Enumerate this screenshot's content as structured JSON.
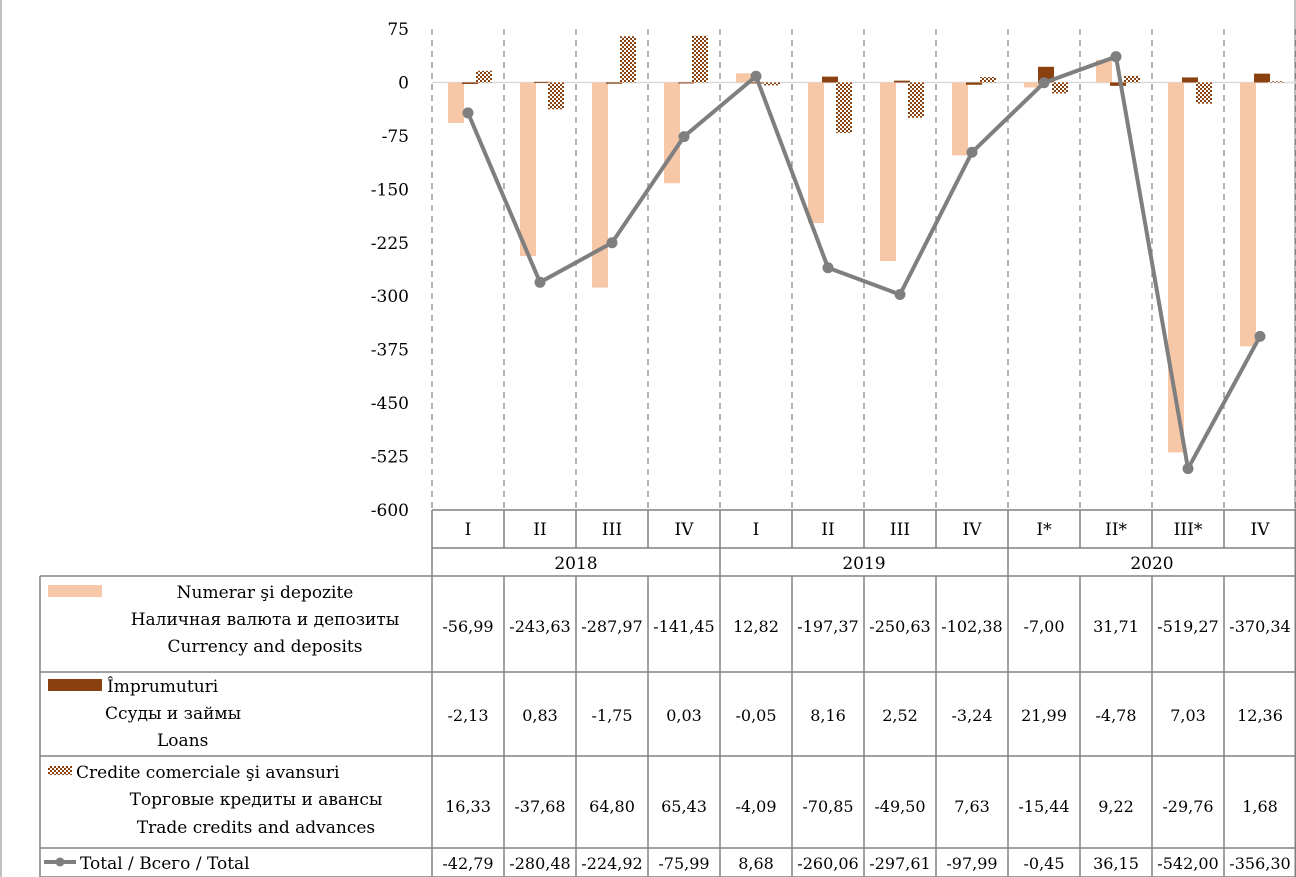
{
  "chart_data": {
    "type": "bar",
    "quarters": [
      "I",
      "II",
      "III",
      "IV",
      "I",
      "II",
      "III",
      "IV",
      "I*",
      "II*",
      "III*",
      "IV"
    ],
    "years": [
      {
        "label": "2018",
        "span": 4
      },
      {
        "label": "2019",
        "span": 4
      },
      {
        "label": "2020",
        "span": 4
      }
    ],
    "y_ticks": [
      "75",
      "0",
      "-75",
      "-150",
      "-225",
      "-300",
      "-375",
      "-450",
      "-525",
      "-600"
    ],
    "ylim": [
      -600,
      75
    ],
    "series": [
      {
        "key": "currency",
        "type": "bar",
        "color": "#f7c8a8",
        "pattern": "solid",
        "label_lines": [
          "Numerar şi depozite",
          "Наличная валюта и депозиты",
          "Currency and deposits"
        ],
        "values": [
          -56.99,
          -243.63,
          -287.97,
          -141.45,
          12.82,
          -197.37,
          -250.63,
          -102.38,
          -7.0,
          31.71,
          -519.27,
          -370.34
        ],
        "cells": [
          "-56,99",
          "-243,63",
          "-287,97",
          "-141,45",
          "12,82",
          "-197,37",
          "-250,63",
          "-102,38",
          "-7,00",
          "31,71",
          "-519,27",
          "-370,34"
        ]
      },
      {
        "key": "loans",
        "type": "bar",
        "color": "#8b4010",
        "pattern": "solid",
        "label_lines": [
          "Împrumuturi",
          "Ссуды и займы",
          "Loans"
        ],
        "values": [
          -2.13,
          0.83,
          -1.75,
          0.03,
          -0.05,
          8.16,
          2.52,
          -3.24,
          21.99,
          -4.78,
          7.03,
          12.36
        ],
        "cells": [
          "-2,13",
          "0,83",
          "-1,75",
          "0,03",
          "-0,05",
          "8,16",
          "2,52",
          "-3,24",
          "21,99",
          "-4,78",
          "7,03",
          "12,36"
        ]
      },
      {
        "key": "trade",
        "type": "bar",
        "color": "#8b4010",
        "pattern": "checker",
        "label_lines": [
          "Credite comerciale şi avansuri",
          "Торговые кредиты и авансы",
          "Trade credits and advances"
        ],
        "values": [
          16.33,
          -37.68,
          64.8,
          65.43,
          -4.09,
          -70.85,
          -49.5,
          7.63,
          -15.44,
          9.22,
          -29.76,
          1.68
        ],
        "cells": [
          "16,33",
          "-37,68",
          "64,80",
          "65,43",
          "-4,09",
          "-70,85",
          "-49,50",
          "7,63",
          "-15,44",
          "9,22",
          "-29,76",
          "1,68"
        ]
      },
      {
        "key": "total",
        "type": "line",
        "color": "#7f7f7f",
        "label_lines": [
          "Total / Всего / Total"
        ],
        "values": [
          -42.79,
          -280.48,
          -224.92,
          -75.99,
          8.68,
          -260.06,
          -297.61,
          -97.99,
          -0.45,
          36.15,
          -542.0,
          -356.3
        ],
        "cells": [
          "-42,79",
          "-280,48",
          "-224,92",
          "-75,99",
          "8,68",
          "-260,06",
          "-297,61",
          "-97,99",
          "-0,45",
          "36,15",
          "-542,00",
          "-356,30"
        ]
      }
    ]
  }
}
